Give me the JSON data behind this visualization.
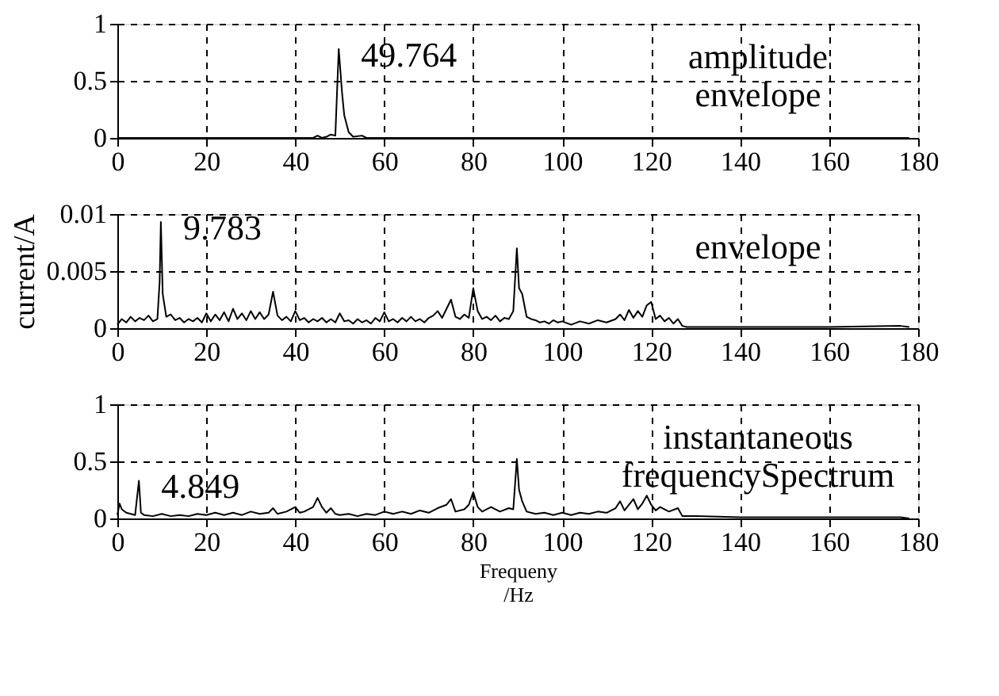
{
  "chart_data": [
    {
      "type": "line",
      "xlim": [
        0,
        180
      ],
      "xticks": [
        0,
        20,
        40,
        60,
        80,
        100,
        120,
        140,
        160,
        180
      ],
      "ylim": [
        0,
        1
      ],
      "yticks": [
        0,
        0.5,
        1
      ],
      "grid": true,
      "marker": "none",
      "line_style": "solid",
      "series": [
        {
          "color": "#000000",
          "x": [
            0,
            10,
            20,
            30,
            40,
            44,
            45,
            46,
            47,
            48,
            49,
            49.764,
            50.5,
            51,
            52,
            53,
            55,
            56,
            60,
            80,
            100,
            120,
            140,
            160,
            178
          ],
          "values": [
            0,
            0,
            0,
            0,
            0,
            0,
            0.02,
            0,
            0.01,
            0.03,
            0.02,
            0.78,
            0.4,
            0.2,
            0.05,
            0.01,
            0.02,
            0,
            0,
            0,
            0,
            0,
            0,
            0,
            0
          ]
        }
      ],
      "annotations": [
        {
          "text": "49.764",
          "x": 49.764,
          "y": 0.78
        },
        "amplitude\nenvelope"
      ]
    },
    {
      "type": "line",
      "xlim": [
        0,
        180
      ],
      "xticks": [
        0,
        20,
        40,
        60,
        80,
        100,
        120,
        140,
        160,
        180
      ],
      "ylim": [
        0,
        0.01
      ],
      "yticks": [
        0,
        0.005,
        0.01
      ],
      "grid": true,
      "marker": "none",
      "line_style": "solid",
      "ylabel": "current/A",
      "series": [
        {
          "color": "#000000",
          "x": [
            0,
            1,
            2,
            3,
            4,
            5,
            6,
            7,
            8,
            9,
            9.5,
            9.783,
            10.2,
            11,
            12,
            13,
            14,
            15,
            16,
            17,
            18,
            19,
            20,
            21,
            22,
            23,
            24,
            25,
            26,
            27,
            28,
            29,
            30,
            31,
            32,
            33,
            34,
            35,
            36,
            37,
            38,
            39,
            40,
            41,
            42,
            43,
            44,
            45,
            46,
            47,
            48,
            49,
            50,
            51,
            52,
            53,
            54,
            55,
            56,
            57,
            58,
            59,
            60,
            61,
            62,
            63,
            64,
            65,
            66,
            67,
            68,
            69,
            70,
            71,
            72,
            73,
            74,
            75,
            76,
            77,
            78,
            79,
            80,
            81,
            82,
            83,
            84,
            85,
            86,
            87,
            88,
            89,
            89.8,
            90.3,
            91,
            92,
            93,
            94,
            95,
            96,
            97,
            98,
            99,
            100,
            102,
            104,
            106,
            108,
            110,
            112,
            113,
            114,
            115,
            116,
            117,
            118,
            119,
            120,
            121,
            122,
            123,
            124,
            125,
            126,
            127,
            128,
            140,
            160,
            176,
            178
          ],
          "values": [
            0.0003,
            0.0008,
            0.0005,
            0.001,
            0.0006,
            0.0009,
            0.0007,
            0.0011,
            0.0006,
            0.0008,
            0.004,
            0.0093,
            0.003,
            0.001,
            0.0012,
            0.0007,
            0.0009,
            0.0005,
            0.0008,
            0.0006,
            0.0009,
            0.0005,
            0.0013,
            0.0006,
            0.0012,
            0.0007,
            0.0014,
            0.0006,
            0.0017,
            0.0008,
            0.0013,
            0.0007,
            0.0015,
            0.0008,
            0.0014,
            0.0008,
            0.0012,
            0.0032,
            0.0011,
            0.0007,
            0.001,
            0.0006,
            0.0015,
            0.0007,
            0.0009,
            0.0005,
            0.0008,
            0.0006,
            0.0009,
            0.0005,
            0.0008,
            0.0005,
            0.0013,
            0.0006,
            0.0007,
            0.0004,
            0.0008,
            0.0005,
            0.0007,
            0.0004,
            0.0009,
            0.0006,
            0.0014,
            0.0006,
            0.0008,
            0.0005,
            0.0009,
            0.0006,
            0.001,
            0.0006,
            0.0008,
            0.0005,
            0.0009,
            0.0011,
            0.0015,
            0.0009,
            0.0017,
            0.0025,
            0.001,
            0.0008,
            0.0012,
            0.0009,
            0.0035,
            0.0015,
            0.0008,
            0.001,
            0.0007,
            0.0011,
            0.0006,
            0.0009,
            0.0008,
            0.0015,
            0.007,
            0.0035,
            0.003,
            0.001,
            0.0008,
            0.0007,
            0.0005,
            0.0006,
            0.0004,
            0.0007,
            0.0005,
            0.0006,
            0.0003,
            0.0006,
            0.0004,
            0.0007,
            0.0005,
            0.0008,
            0.0012,
            0.0007,
            0.0016,
            0.0009,
            0.0015,
            0.001,
            0.002,
            0.0023,
            0.0008,
            0.0011,
            0.0006,
            0.0009,
            0.0004,
            0.0008,
            0.0002,
            0.0001,
            0.0001,
            0.0001,
            0.0002,
            0.0001
          ]
        }
      ],
      "annotations": [
        {
          "text": "9.783",
          "x": 9.783,
          "y": 0.0093
        },
        "envelope"
      ]
    },
    {
      "type": "line",
      "xlim": [
        0,
        180
      ],
      "xticks": [
        0,
        20,
        40,
        60,
        80,
        100,
        120,
        140,
        160,
        180
      ],
      "ylim": [
        0,
        1
      ],
      "yticks": [
        0,
        0.5,
        1
      ],
      "grid": true,
      "marker": "none",
      "line_style": "solid",
      "xlabel": "Frequeny\n/Hz",
      "series": [
        {
          "color": "#000000",
          "x": [
            0,
            0.5,
            1,
            2,
            3,
            4,
            4.849,
            5.3,
            6,
            8,
            10,
            12,
            14,
            16,
            18,
            20,
            22,
            24,
            26,
            28,
            30,
            32,
            34,
            35,
            36,
            38,
            40,
            41,
            42,
            44,
            45,
            46,
            47,
            48,
            49,
            50,
            52,
            54,
            56,
            58,
            60,
            62,
            64,
            66,
            68,
            70,
            72,
            74,
            75,
            76,
            78,
            79,
            80,
            81,
            82,
            84,
            86,
            88,
            89,
            89.8,
            90.3,
            91,
            92,
            94,
            96,
            98,
            100,
            102,
            104,
            106,
            108,
            110,
            112,
            113,
            114,
            116,
            117,
            118,
            119,
            120,
            121,
            122,
            124,
            126,
            127,
            130,
            140,
            160,
            176,
            178
          ],
          "values": [
            0.03,
            0.13,
            0.08,
            0.05,
            0.04,
            0.03,
            0.33,
            0.05,
            0.03,
            0.02,
            0.04,
            0.02,
            0.03,
            0.02,
            0.04,
            0.03,
            0.05,
            0.03,
            0.05,
            0.03,
            0.06,
            0.04,
            0.05,
            0.09,
            0.04,
            0.06,
            0.1,
            0.05,
            0.06,
            0.1,
            0.18,
            0.1,
            0.05,
            0.09,
            0.04,
            0.03,
            0.04,
            0.02,
            0.04,
            0.03,
            0.06,
            0.04,
            0.06,
            0.04,
            0.07,
            0.05,
            0.09,
            0.12,
            0.17,
            0.06,
            0.08,
            0.12,
            0.23,
            0.1,
            0.06,
            0.1,
            0.06,
            0.09,
            0.08,
            0.52,
            0.25,
            0.15,
            0.06,
            0.04,
            0.05,
            0.03,
            0.05,
            0.03,
            0.05,
            0.04,
            0.06,
            0.05,
            0.09,
            0.15,
            0.07,
            0.17,
            0.08,
            0.13,
            0.2,
            0.12,
            0.07,
            0.1,
            0.06,
            0.09,
            0.02,
            0.02,
            0.01,
            0.01,
            0.01,
            0
          ]
        }
      ],
      "annotations": [
        {
          "text": "4.849",
          "x": 4.849,
          "y": 0.33
        },
        "instantaneous\nfrequencySpectrum"
      ]
    }
  ]
}
